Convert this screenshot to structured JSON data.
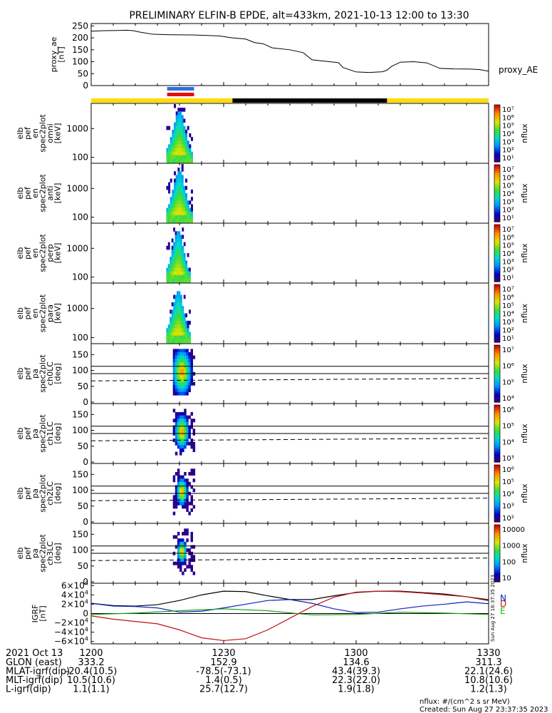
{
  "chart_data": {
    "title": "PRELIMINARY ELFIN-B EPDE, alt=433km, 2021-10-13 12:00 to 13:30",
    "type": "spectrogram-stack",
    "x_range_min": [
      0,
      90
    ],
    "x_tick_minutes": [
      0,
      30,
      60,
      90
    ],
    "x_tick_labels": [
      "1200",
      "1230",
      "1300",
      "1330"
    ],
    "proxy_ae": {
      "ylabel": "proxy_ae\n[nT]",
      "right_label": "proxy_AE",
      "ylim": [
        0,
        260
      ],
      "yticks": [
        0,
        50,
        100,
        150,
        200,
        250
      ],
      "x": [
        0,
        3,
        6,
        8,
        9.5,
        11,
        14,
        18,
        23,
        29,
        32,
        35,
        37,
        39,
        41,
        45,
        48,
        50,
        53,
        56,
        57,
        60,
        63,
        66,
        67,
        68,
        70,
        73,
        76,
        79,
        82,
        86,
        88,
        90
      ],
      "y": [
        228,
        230,
        231,
        232,
        230,
        224,
        215,
        213,
        212,
        208,
        200,
        195,
        180,
        175,
        158,
        150,
        138,
        108,
        102,
        96,
        76,
        57,
        55,
        58,
        65,
        80,
        98,
        100,
        95,
        72,
        70,
        69,
        67,
        60
      ]
    },
    "orbit_bars": {
      "segments": [
        {
          "from": 0,
          "to": 32,
          "color": "#ffdd00"
        },
        {
          "from": 32,
          "to": 67,
          "color": "#000000"
        },
        {
          "from": 67,
          "to": 90,
          "color": "#ffdd00"
        }
      ],
      "science_markers": [
        {
          "from": 17.2,
          "to": 23.3,
          "color": "#2f6fd8"
        },
        {
          "from": 17.2,
          "to": 23.3,
          "color": "#e01010"
        }
      ]
    },
    "spectrograms": [
      {
        "ylabel": "elb\npef\nen\nspec2plot\nomni\n[keV]",
        "yticks": [
          "1000",
          "100"
        ],
        "cbar_ticks": [
          "10⁷",
          "10⁶",
          "10⁵",
          "10⁴",
          "10³",
          "10²",
          "10¹"
        ],
        "cbar_label": "nflux",
        "t_start": 17.0,
        "t_end": 23.0
      },
      {
        "ylabel": "elb\npef\nen\nspec2plot\nanti\n[keV]",
        "yticks": [
          "1000",
          "100"
        ],
        "cbar_ticks": [
          "10⁷",
          "10⁶",
          "10⁵",
          "10⁴",
          "10³",
          "10²",
          "10¹"
        ],
        "cbar_label": "nflux",
        "t_start": 17.0,
        "t_end": 23.0
      },
      {
        "ylabel": "elb\npef\nen\nspec2plot\nperp\n[keV]",
        "yticks": [
          "1000",
          "100"
        ],
        "cbar_ticks": [
          "10⁷",
          "10⁶",
          "10⁵",
          "10⁴",
          "10³",
          "10²",
          "10¹"
        ],
        "cbar_label": "nflux",
        "t_start": 17.0,
        "t_end": 22.5
      },
      {
        "ylabel": "elb\npef\nen\nspec2plot\npara\n[keV]",
        "yticks": [
          "1000",
          "100"
        ],
        "cbar_ticks": [
          "10⁷",
          "10⁶",
          "10⁵",
          "10⁴",
          "10³",
          "10²",
          "10¹"
        ],
        "cbar_label": "nflux",
        "t_start": 17.0,
        "t_end": 22.5
      }
    ],
    "pitch_angle": [
      {
        "ylabel": "elb\npef\npa\nspec2plot\nch0LC\n[deg]",
        "yticks": [
          "150",
          "100",
          "50",
          "0"
        ],
        "cbar_ticks": [
          "10⁷",
          "10⁶",
          "10⁵",
          "10⁴"
        ],
        "cbar_label": "nflux"
      },
      {
        "ylabel": "elb\npef\npa\nspec2plot\nch1LC\n[deg]",
        "yticks": [
          "150",
          "100",
          "50",
          "0"
        ],
        "cbar_ticks": [
          "10⁶",
          "10⁵",
          "10⁴",
          "10³"
        ],
        "cbar_label": "nflux"
      },
      {
        "ylabel": "elb\npef\npa\nspec2plot\nch2LC\n[deg]",
        "yticks": [
          "150",
          "100",
          "50",
          "0"
        ],
        "cbar_ticks": [
          "10⁶",
          "10⁵",
          "10⁴",
          "10³",
          "10²"
        ],
        "cbar_label": "nflux"
      },
      {
        "ylabel": "elb\npef\npa\nspec2plot\nch3LC\n[deg]",
        "yticks": [
          "150",
          "100",
          "50",
          "0"
        ],
        "cbar_ticks": [
          "10000",
          "1000",
          "100",
          "10"
        ],
        "cbar_label": "nflux"
      }
    ],
    "igrf": {
      "ylabel": "IGRF\n[nT]",
      "ylim": [
        -65000,
        65000
      ],
      "ytick_labels": [
        [
          "6×10",
          "4"
        ],
        [
          "4×10",
          "4"
        ],
        [
          "2×10",
          "4"
        ],
        [
          "0",
          ""
        ],
        [
          "−2×10",
          "4"
        ],
        [
          "−4×10",
          "4"
        ],
        [
          "−6×10",
          "4"
        ]
      ],
      "component_labels": [
        "N",
        "E",
        "D"
      ],
      "series": [
        {
          "color": "#000000",
          "x": [
            0,
            5,
            10,
            15,
            20,
            25,
            30,
            35,
            40,
            45,
            50,
            55,
            60,
            65,
            70,
            75,
            80,
            85,
            90
          ],
          "y": [
            22000,
            17000,
            16000,
            19000,
            28000,
            40000,
            48000,
            47000,
            38000,
            30000,
            30000,
            38000,
            45000,
            48000,
            48000,
            45000,
            42000,
            36000,
            28000
          ]
        },
        {
          "color": "#1020c0",
          "x": [
            0,
            5,
            10,
            15,
            20,
            25,
            30,
            35,
            40,
            45,
            50,
            55,
            60,
            65,
            70,
            75,
            80,
            85,
            90
          ],
          "y": [
            22000,
            16000,
            15000,
            12000,
            3000,
            5000,
            12000,
            20000,
            28000,
            30000,
            22000,
            10000,
            2000,
            3000,
            10000,
            16000,
            20000,
            25000,
            21000
          ]
        },
        {
          "color": "#10a010",
          "x": [
            0,
            10,
            20,
            30,
            40,
            50,
            60,
            70,
            80,
            90
          ],
          "y": [
            -2000,
            1000,
            6000,
            10000,
            6000,
            -3000,
            -2000,
            3000,
            1000,
            -2000
          ]
        },
        {
          "color": "#c01010",
          "x": [
            0,
            5,
            10,
            15,
            20,
            25,
            30,
            35,
            40,
            45,
            50,
            55,
            60,
            65,
            70,
            75,
            80,
            85,
            90
          ],
          "y": [
            -5000,
            -12000,
            -17000,
            -22000,
            -35000,
            -52000,
            -58000,
            -54000,
            -35000,
            -10000,
            15000,
            35000,
            46000,
            48000,
            47000,
            44000,
            40000,
            36000,
            30000
          ]
        }
      ]
    },
    "ephemeris": {
      "header": [
        "2021 Oct 13",
        "1200",
        "1230",
        "1300",
        "1330"
      ],
      "rows": [
        {
          "label": "GLON (east)",
          "values": [
            "333.2",
            "152.9",
            "134.6",
            "311.3"
          ]
        },
        {
          "label": "MLAT-igrf(dip)",
          "values": [
            "-20.4(10.5)",
            "-78.5(-73.1)",
            "43.4(39.3)",
            "22.1(24.6)"
          ]
        },
        {
          "label": "MLT-igrf(dip)",
          "values": [
            "10.5(10.6)",
            "1.4(0.5)",
            "22.3(22.0)",
            "10.8(10.6)"
          ]
        },
        {
          "label": "L-igrf(dip)",
          "values": [
            "1.1(1.1)",
            "25.7(12.7)",
            "1.9(1.8)",
            "1.2(1.3)"
          ]
        }
      ]
    },
    "footer": {
      "units": "nflux: #/(cm^2 s sr MeV)",
      "created": "Created: Sun Aug 27 23:37:35 2023",
      "side_stamp": "Sun Aug 27 16:37:35 2023"
    }
  }
}
